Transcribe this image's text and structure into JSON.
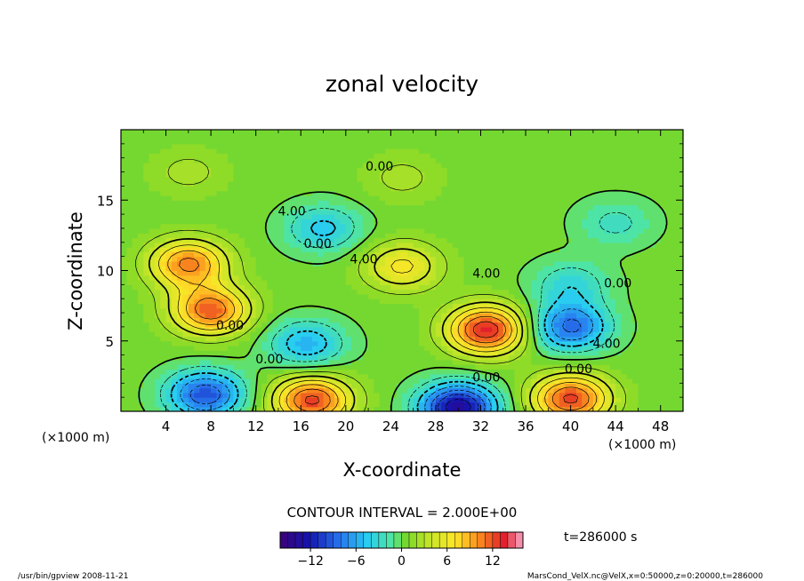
{
  "chart_data": {
    "type": "heatmap",
    "title": "zonal velocity",
    "xlabel": "X-coordinate",
    "ylabel": "Z-coordinate",
    "x_unit": "(×1000 m)",
    "z_unit": "(×1000 m)",
    "x_ticks": [
      4,
      8,
      12,
      16,
      20,
      24,
      28,
      32,
      36,
      40,
      44,
      48
    ],
    "y_ticks": [
      5,
      10,
      15
    ],
    "xlim": [
      0,
      50
    ],
    "ylim": [
      0,
      20
    ],
    "contour_interval_text": "CONTOUR INTERVAL = 2.000E+00",
    "contour_labels": [
      {
        "text": "0.00",
        "x": 23,
        "z": 17.1
      },
      {
        "text": "4.00",
        "x": 15.2,
        "z": 13.9
      },
      {
        "text": "0.00",
        "x": 17.5,
        "z": 11.6
      },
      {
        "text": "4.00",
        "x": 21.6,
        "z": 10.5
      },
      {
        "text": "4.00",
        "x": 32.5,
        "z": 9.5
      },
      {
        "text": "0.00",
        "x": 44.2,
        "z": 8.8
      },
      {
        "text": "0.00",
        "x": 9.7,
        "z": 5.8
      },
      {
        "text": "0.00",
        "x": 13.2,
        "z": 3.4
      },
      {
        "text": "0.00",
        "x": 32.5,
        "z": 2.1
      },
      {
        "text": "0.00",
        "x": 40.7,
        "z": 2.7
      },
      {
        "text": "4.00",
        "x": 43.2,
        "z": 4.5
      }
    ],
    "colorbar": {
      "min": -16,
      "max": 16,
      "step": 1,
      "tick_labels": [
        "−12",
        "−6",
        "0",
        "6",
        "12"
      ],
      "tick_values": [
        -12,
        -6,
        0,
        6,
        12
      ]
    },
    "field_features": [
      {
        "x": 8,
        "z": 7.2,
        "value": 11
      },
      {
        "x": 32.5,
        "z": 5.8,
        "value": 13
      },
      {
        "x": 16.5,
        "z": 4.8,
        "value": -6
      },
      {
        "x": 40,
        "z": 6,
        "value": -9
      },
      {
        "x": 7.5,
        "z": 1.2,
        "value": -10
      },
      {
        "x": 30,
        "z": 0.3,
        "value": -14
      },
      {
        "x": 17,
        "z": 0.8,
        "value": 12
      },
      {
        "x": 40,
        "z": 0.9,
        "value": 12
      },
      {
        "x": 18,
        "z": 13,
        "value": -5
      },
      {
        "x": 44,
        "z": 13.4,
        "value": -3
      },
      {
        "x": 25,
        "z": 10.3,
        "value": 6
      },
      {
        "x": 6,
        "z": 10.5,
        "value": 10
      },
      {
        "x": 25,
        "z": 16.6,
        "value": 2
      },
      {
        "x": 6,
        "z": 17,
        "value": 2
      },
      {
        "x": 40,
        "z": 9,
        "value": -4
      }
    ],
    "field_base": 0.5,
    "time_label": "t=286000 s"
  },
  "footer": {
    "left": "/usr/bin/gpview   2008-11-21",
    "right": "MarsCond_VelX.nc@VelX,x=0:50000,z=0:20000,t=286000"
  }
}
